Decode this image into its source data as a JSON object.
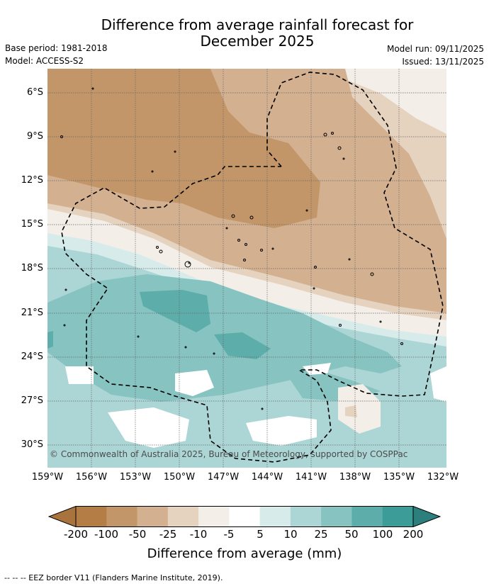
{
  "title_line1": "Difference from average rainfall forecast for",
  "title_line2": "December 2025",
  "base_period": "Base period: 1981-2018",
  "model": "Model: ACCESS-S2",
  "model_run": "Model run: 09/11/2025",
  "issued": "Issued: 13/11/2025",
  "copyright": "© Commonwealth of Australia 2025, Bureau of Meteorology, supported by COSPPac",
  "lat_labels": [
    "6°S",
    "9°S",
    "12°S",
    "15°S",
    "18°S",
    "21°S",
    "24°S",
    "27°S",
    "30°S"
  ],
  "lon_labels": [
    "159°W",
    "156°W",
    "153°W",
    "150°W",
    "147°W",
    "144°W",
    "141°W",
    "138°W",
    "135°W",
    "132°W"
  ],
  "colorbar": {
    "ticks": [
      "-200",
      "-100",
      "-50",
      "-25",
      "-10",
      "-5",
      "5",
      "10",
      "25",
      "50",
      "100",
      "200"
    ],
    "colors": [
      "#a8733c",
      "#b37d45",
      "#c29669",
      "#d3b08f",
      "#e5d2bf",
      "#f3eee7",
      "#ffffff",
      "#d6ebea",
      "#acd6d5",
      "#86c3c1",
      "#5dadaa",
      "#3b9c98",
      "#2c7f7c"
    ],
    "title": "Difference from average (mm)"
  },
  "footnote": "-- -- -- EEZ border V11 (Flanders Marine Institute, 2019)."
}
